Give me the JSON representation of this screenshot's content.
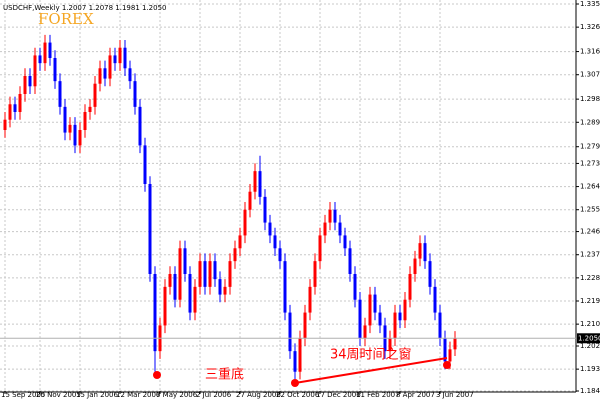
{
  "chart_data": {
    "type": "candlestick",
    "title": "USDCHF,Weekly 1.2007 1.2078 1.1981 1.2050",
    "annotations": [
      "FOREX",
      "三重底",
      "34周时间之窗"
    ],
    "categories": [
      "15 Sep 2005",
      null,
      null,
      null,
      null,
      null,
      null,
      "20 Nov 2005",
      null,
      null,
      null,
      null,
      null,
      null,
      null,
      "15 Jan 2006",
      null,
      null,
      null,
      null,
      null,
      null,
      null,
      "12 Mar 2006",
      null,
      null,
      null,
      null,
      null,
      null,
      null,
      "7 May 2006",
      null,
      null,
      null,
      null,
      null,
      null,
      null,
      "2 Jul 2006",
      null,
      null,
      null,
      null,
      null,
      null,
      null,
      "27 Aug 2006",
      null,
      null,
      null,
      null,
      null,
      null,
      null,
      "22 Oct 2006",
      null,
      null,
      null,
      null,
      null,
      null,
      null,
      "17 Dec 2006",
      null,
      null,
      null,
      null,
      null,
      null,
      null,
      "11 Feb 2007",
      null,
      null,
      null,
      null,
      null,
      null,
      null,
      "8 Apr 2007",
      null,
      null,
      null,
      null,
      null,
      null,
      null,
      "3 Jun 2007",
      null,
      null,
      null
    ],
    "open": [
      1.286,
      1.29,
      1.296,
      1.293,
      1.3,
      1.307,
      1.303,
      1.315,
      1.312,
      1.32,
      1.314,
      1.305,
      1.295,
      1.285,
      1.288,
      1.28,
      1.286,
      1.293,
      1.295,
      1.304,
      1.31,
      1.306,
      1.315,
      1.312,
      1.318,
      1.31,
      1.305,
      1.295,
      1.28,
      1.265,
      1.23,
      1.2,
      1.21,
      1.225,
      1.23,
      1.22,
      1.24,
      1.23,
      1.215,
      1.225,
      1.235,
      1.225,
      1.235,
      1.228,
      1.222,
      1.225,
      1.235,
      1.24,
      1.245,
      1.255,
      1.262,
      1.27,
      1.26,
      1.25,
      1.245,
      1.24,
      1.235,
      1.215,
      1.2,
      1.192,
      1.205,
      1.215,
      1.225,
      1.235,
      1.245,
      1.25,
      1.255,
      1.25,
      1.245,
      1.24,
      1.23,
      1.22,
      1.205,
      1.21,
      1.222,
      1.215,
      1.21,
      1.2,
      1.205,
      1.215,
      1.212,
      1.22,
      1.23,
      1.236,
      1.242,
      1.235,
      1.225,
      1.215,
      1.205,
      1.196,
      1.2007
    ],
    "high": [
      1.293,
      1.299,
      1.299,
      1.303,
      1.31,
      1.31,
      1.318,
      1.318,
      1.323,
      1.323,
      1.317,
      1.308,
      1.298,
      1.291,
      1.291,
      1.289,
      1.296,
      1.298,
      1.307,
      1.313,
      1.313,
      1.318,
      1.318,
      1.321,
      1.321,
      1.313,
      1.308,
      1.298,
      1.283,
      1.268,
      1.233,
      1.213,
      1.228,
      1.233,
      1.233,
      1.243,
      1.243,
      1.233,
      1.228,
      1.238,
      1.238,
      1.238,
      1.238,
      1.231,
      1.228,
      1.238,
      1.243,
      1.248,
      1.258,
      1.265,
      1.273,
      1.276,
      1.263,
      1.253,
      1.248,
      1.243,
      1.238,
      1.218,
      1.203,
      1.208,
      1.218,
      1.228,
      1.238,
      1.248,
      1.253,
      1.258,
      1.258,
      1.253,
      1.248,
      1.243,
      1.233,
      1.223,
      1.213,
      1.225,
      1.225,
      1.218,
      1.213,
      1.208,
      1.218,
      1.218,
      1.223,
      1.233,
      1.239,
      1.245,
      1.245,
      1.238,
      1.228,
      1.218,
      1.208,
      1.2037,
      1.2078
    ],
    "low": [
      1.283,
      1.287,
      1.29,
      1.29,
      1.297,
      1.3,
      1.3,
      1.309,
      1.309,
      1.311,
      1.302,
      1.292,
      1.282,
      1.282,
      1.277,
      1.277,
      1.283,
      1.29,
      1.292,
      1.301,
      1.303,
      1.303,
      1.309,
      1.309,
      1.307,
      1.302,
      1.292,
      1.277,
      1.262,
      1.227,
      1.192,
      1.197,
      1.207,
      1.222,
      1.217,
      1.217,
      1.227,
      1.212,
      1.212,
      1.222,
      1.222,
      1.222,
      1.225,
      1.219,
      1.219,
      1.222,
      1.232,
      1.237,
      1.242,
      1.252,
      1.259,
      1.257,
      1.247,
      1.242,
      1.237,
      1.232,
      1.212,
      1.197,
      1.1875,
      1.189,
      1.202,
      1.212,
      1.222,
      1.232,
      1.242,
      1.247,
      1.247,
      1.242,
      1.237,
      1.227,
      1.217,
      1.202,
      1.202,
      1.207,
      1.212,
      1.207,
      1.197,
      1.197,
      1.202,
      1.209,
      1.209,
      1.217,
      1.227,
      1.233,
      1.232,
      1.222,
      1.212,
      1.202,
      1.193,
      1.193,
      1.1981
    ],
    "close": [
      1.29,
      1.296,
      1.293,
      1.3,
      1.307,
      1.303,
      1.315,
      1.312,
      1.32,
      1.314,
      1.305,
      1.295,
      1.285,
      1.288,
      1.28,
      1.286,
      1.293,
      1.295,
      1.304,
      1.31,
      1.306,
      1.315,
      1.312,
      1.318,
      1.31,
      1.305,
      1.295,
      1.28,
      1.265,
      1.23,
      1.2,
      1.21,
      1.225,
      1.23,
      1.22,
      1.24,
      1.23,
      1.215,
      1.225,
      1.235,
      1.225,
      1.235,
      1.228,
      1.222,
      1.225,
      1.235,
      1.24,
      1.245,
      1.255,
      1.262,
      1.27,
      1.26,
      1.25,
      1.245,
      1.24,
      1.235,
      1.215,
      1.2,
      1.192,
      1.205,
      1.215,
      1.225,
      1.235,
      1.245,
      1.25,
      1.255,
      1.25,
      1.245,
      1.24,
      1.23,
      1.22,
      1.205,
      1.21,
      1.222,
      1.215,
      1.21,
      1.2,
      1.205,
      1.215,
      1.212,
      1.22,
      1.23,
      1.236,
      1.242,
      1.235,
      1.225,
      1.215,
      1.205,
      1.196,
      1.2007,
      1.205
    ],
    "up_color": "#ff0000",
    "down_color": "#0000ff",
    "ylim": [
      1.1845,
      1.335
    ],
    "yticks": [
      {
        "value": 1.335,
        "label": "1.3350"
      },
      {
        "value": 1.326,
        "label": "1.3260"
      },
      1.3165,
      1.3075,
      {
        "value": 1.298,
        "label": "1.2980"
      },
      {
        "value": 1.289,
        "label": "1.2890"
      },
      1.2795,
      {
        "value": 1.273,
        "label": "1.2730"
      },
      {
        "value": 1.264,
        "label": "1.2640"
      },
      {
        "value": 1.255,
        "label": "1.2550"
      },
      1.2465,
      1.2375,
      1.2285,
      1.2195,
      1.2105,
      {
        "value": 1.202,
        "label": "1.2020"
      },
      {
        "value": 1.193,
        "label": "1.1930"
      },
      1.1845
    ],
    "last_price": {
      "value": 1.205,
      "label": "1.2050"
    },
    "grid": true
  }
}
